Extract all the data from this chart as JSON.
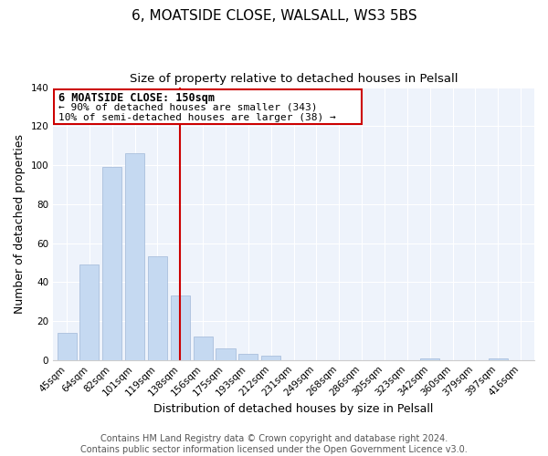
{
  "title": "6, MOATSIDE CLOSE, WALSALL, WS3 5BS",
  "subtitle": "Size of property relative to detached houses in Pelsall",
  "xlabel": "Distribution of detached houses by size in Pelsall",
  "ylabel": "Number of detached properties",
  "bar_labels": [
    "45sqm",
    "64sqm",
    "82sqm",
    "101sqm",
    "119sqm",
    "138sqm",
    "156sqm",
    "175sqm",
    "193sqm",
    "212sqm",
    "231sqm",
    "249sqm",
    "268sqm",
    "286sqm",
    "305sqm",
    "323sqm",
    "342sqm",
    "360sqm",
    "379sqm",
    "397sqm",
    "416sqm"
  ],
  "bar_values": [
    14,
    49,
    99,
    106,
    53,
    33,
    12,
    6,
    3,
    2,
    0,
    0,
    0,
    0,
    0,
    0,
    1,
    0,
    0,
    1,
    0
  ],
  "highlight_index": 5,
  "bar_color_normal": "#c5d9f1",
  "highlight_edge_color": "#cc0000",
  "ylim": [
    0,
    140
  ],
  "yticks": [
    0,
    20,
    40,
    60,
    80,
    100,
    120,
    140
  ],
  "annotation_title": "6 MOATSIDE CLOSE: 150sqm",
  "annotation_line1": "← 90% of detached houses are smaller (343)",
  "annotation_line2": "10% of semi-detached houses are larger (38) →",
  "footer1": "Contains HM Land Registry data © Crown copyright and database right 2024.",
  "footer2": "Contains public sector information licensed under the Open Government Licence v3.0.",
  "title_fontsize": 11,
  "subtitle_fontsize": 9.5,
  "axis_label_fontsize": 9,
  "tick_fontsize": 7.5,
  "annotation_fontsize": 8.5,
  "footer_fontsize": 7
}
